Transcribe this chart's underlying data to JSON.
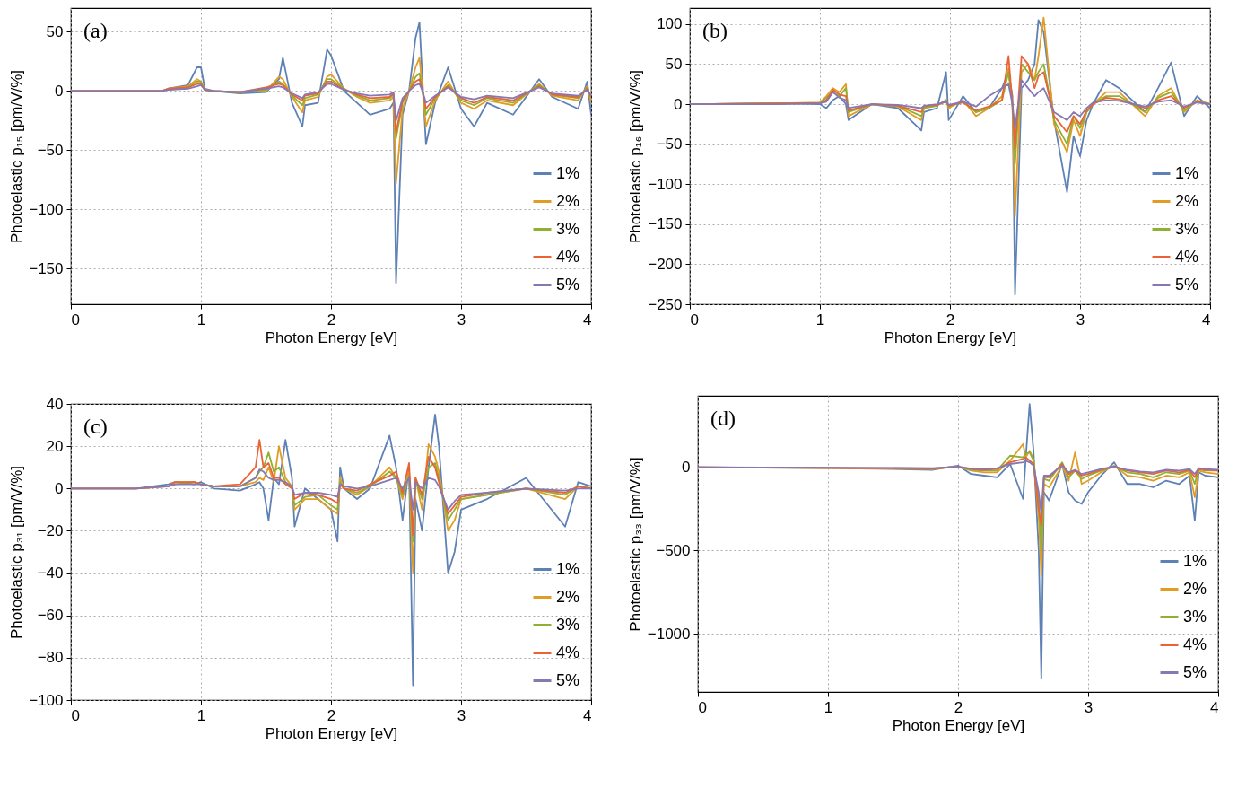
{
  "chart_data": [
    {
      "type": "line",
      "annotations": [
        "(a)"
      ],
      "xlabel": "Photon Energy [eV]",
      "ylabel": "Photoelastic p₁₅ [pm/V/%]",
      "xlim": [
        0,
        4
      ],
      "xticks": [
        0,
        1,
        2,
        3,
        4
      ],
      "ylim": [
        -180,
        70
      ],
      "yticks": [
        -150,
        -100,
        -50,
        0,
        50
      ],
      "grid": true,
      "legend": "bottom right",
      "marker": "none",
      "line_style": "solid",
      "x": [
        0,
        0.7,
        0.75,
        0.9,
        0.97,
        1.0,
        1.03,
        1.1,
        1.3,
        1.5,
        1.6,
        1.63,
        1.7,
        1.78,
        1.8,
        1.9,
        1.97,
        2.0,
        2.1,
        2.2,
        2.3,
        2.45,
        2.48,
        2.5,
        2.55,
        2.6,
        2.65,
        2.68,
        2.7,
        2.73,
        2.8,
        2.9,
        3.0,
        3.1,
        3.2,
        3.4,
        3.6,
        3.7,
        3.9,
        3.97,
        4.0
      ],
      "series": [
        {
          "name": "1%",
          "color": "#5e81b5",
          "values": [
            0,
            0,
            2,
            5,
            20,
            20,
            2,
            0,
            -2,
            -1,
            10,
            28,
            -10,
            -30,
            -12,
            -10,
            35,
            30,
            0,
            -10,
            -20,
            -15,
            -10,
            -162,
            -20,
            0,
            45,
            58,
            15,
            -45,
            -10,
            20,
            -15,
            -30,
            -10,
            -20,
            10,
            -5,
            -15,
            8,
            -20
          ]
        },
        {
          "name": "2%",
          "color": "#e19c24",
          "values": [
            0,
            0,
            2,
            4,
            10,
            8,
            1,
            0,
            -1,
            0,
            12,
            10,
            -5,
            -18,
            -8,
            -5,
            12,
            14,
            2,
            -5,
            -10,
            -8,
            -5,
            -78,
            -15,
            0,
            20,
            28,
            5,
            -30,
            -8,
            8,
            -10,
            -15,
            -8,
            -12,
            6,
            -4,
            -8,
            4,
            -10
          ]
        },
        {
          "name": "3%",
          "color": "#8fb032",
          "values": [
            null,
            null,
            1,
            3,
            8,
            8,
            1,
            0,
            -1,
            1,
            8,
            6,
            -4,
            -12,
            -6,
            -3,
            10,
            10,
            2,
            -4,
            -8,
            -6,
            -3,
            -40,
            -10,
            0,
            12,
            15,
            3,
            -20,
            -6,
            5,
            -8,
            -12,
            -6,
            -10,
            5,
            -3,
            -6,
            3,
            -6
          ]
        },
        {
          "name": "4%",
          "color": "#eb6235",
          "values": [
            0,
            0,
            2,
            3,
            6,
            6,
            1,
            0,
            -1,
            3,
            6,
            5,
            -3,
            -8,
            -4,
            -2,
            8,
            8,
            1,
            -3,
            -6,
            -5,
            -2,
            -35,
            -8,
            0,
            8,
            10,
            2,
            -15,
            -5,
            4,
            -6,
            -10,
            -5,
            -8,
            4,
            -3,
            -5,
            2,
            -5
          ]
        },
        {
          "name": "5%",
          "color": "#8778b3",
          "values": [
            0,
            0,
            1,
            2,
            4,
            5,
            1,
            0,
            -1,
            2,
            4,
            3,
            -2,
            -6,
            -3,
            -1,
            6,
            6,
            1,
            -2,
            -4,
            -3,
            -1,
            -25,
            -6,
            0,
            5,
            6,
            1,
            -10,
            -4,
            3,
            -5,
            -7,
            -4,
            -6,
            3,
            -2,
            -4,
            1,
            -4
          ]
        }
      ]
    },
    {
      "type": "line",
      "annotations": [
        "(b)"
      ],
      "xlabel": "Photon Energy [eV]",
      "ylabel": "Photoelastic p₁₆ [pm/V/%]",
      "xlim": [
        0,
        4
      ],
      "xticks": [
        0,
        1,
        2,
        3,
        4
      ],
      "ylim": [
        -250,
        120
      ],
      "yticks": [
        -250,
        -200,
        -150,
        -100,
        -50,
        0,
        50,
        100
      ],
      "grid": true,
      "legend": "bottom right",
      "marker": "none",
      "line_style": "solid",
      "x": [
        0,
        0.7,
        1.0,
        1.05,
        1.1,
        1.15,
        1.2,
        1.22,
        1.4,
        1.6,
        1.78,
        1.8,
        1.9,
        1.97,
        1.99,
        2.1,
        2.2,
        2.3,
        2.4,
        2.45,
        2.48,
        2.5,
        2.55,
        2.6,
        2.65,
        2.68,
        2.72,
        2.8,
        2.9,
        2.95,
        3.0,
        3.05,
        3.1,
        3.2,
        3.3,
        3.5,
        3.6,
        3.7,
        3.8,
        3.9,
        4.0
      ],
      "series": [
        {
          "name": "1%",
          "color": "#5e81b5",
          "values": [
            0,
            1,
            0,
            -5,
            5,
            10,
            0,
            -20,
            0,
            -5,
            -33,
            -10,
            -5,
            40,
            -20,
            10,
            -10,
            -5,
            20,
            40,
            10,
            -238,
            20,
            30,
            50,
            105,
            90,
            -20,
            -110,
            -40,
            -65,
            -20,
            0,
            30,
            20,
            -10,
            20,
            52,
            -15,
            10,
            -5
          ]
        },
        {
          "name": "2%",
          "color": "#e19c24",
          "values": [
            0,
            1,
            2,
            10,
            20,
            15,
            25,
            -15,
            0,
            -3,
            -20,
            -5,
            -2,
            5,
            -5,
            5,
            -15,
            -5,
            10,
            45,
            0,
            -140,
            40,
            50,
            30,
            60,
            108,
            -25,
            -60,
            -20,
            -40,
            -10,
            0,
            15,
            15,
            -15,
            10,
            20,
            -10,
            5,
            0
          ]
        },
        {
          "name": "3%",
          "color": "#8fb032",
          "values": [
            0,
            1,
            1,
            8,
            15,
            10,
            20,
            -10,
            0,
            -2,
            -15,
            -5,
            -2,
            5,
            -3,
            3,
            -10,
            -5,
            5,
            40,
            0,
            -75,
            50,
            40,
            30,
            40,
            50,
            -20,
            -50,
            -15,
            -30,
            -10,
            0,
            10,
            10,
            -10,
            8,
            15,
            -8,
            4,
            0
          ]
        },
        {
          "name": "4%",
          "color": "#eb6235",
          "values": [
            0,
            1,
            1,
            5,
            18,
            12,
            10,
            -8,
            0,
            -2,
            -10,
            -3,
            -1,
            3,
            -2,
            2,
            -8,
            -3,
            5,
            60,
            0,
            -55,
            60,
            50,
            20,
            35,
            40,
            -15,
            -35,
            -15,
            -25,
            -8,
            0,
            8,
            6,
            -5,
            5,
            10,
            -5,
            3,
            0
          ]
        },
        {
          "name": "5%",
          "color": "#8778b3",
          "values": [
            0,
            0,
            1,
            3,
            15,
            8,
            5,
            -5,
            0,
            -1,
            -5,
            -2,
            0,
            3,
            -1,
            3,
            -3,
            10,
            20,
            25,
            0,
            -30,
            30,
            20,
            10,
            15,
            20,
            -10,
            -20,
            -10,
            -15,
            -5,
            2,
            5,
            4,
            -3,
            3,
            5,
            -3,
            2,
            0
          ]
        }
      ]
    },
    {
      "type": "line",
      "annotations": [
        "(c)"
      ],
      "xlabel": "Photon Energy [eV]",
      "ylabel": "Photoelastic p₃₁ [pm/V/%]",
      "xlim": [
        0,
        4
      ],
      "xticks": [
        0,
        1,
        2,
        3,
        4
      ],
      "ylim": [
        -100,
        40
      ],
      "yticks": [
        -100,
        -80,
        -60,
        -40,
        -20,
        0,
        20,
        40
      ],
      "grid": true,
      "legend": "bottom right",
      "marker": "none",
      "line_style": "solid",
      "x": [
        0,
        0.5,
        0.75,
        0.8,
        0.95,
        1.0,
        1.1,
        1.3,
        1.42,
        1.45,
        1.48,
        1.52,
        1.56,
        1.6,
        1.65,
        1.7,
        1.72,
        1.8,
        1.9,
        2.0,
        2.05,
        2.07,
        2.1,
        2.2,
        2.3,
        2.45,
        2.5,
        2.55,
        2.6,
        2.63,
        2.65,
        2.7,
        2.75,
        2.8,
        2.83,
        2.9,
        2.95,
        3.0,
        3.2,
        3.5,
        3.8,
        3.9,
        4.0
      ],
      "series": [
        {
          "name": "1%",
          "color": "#5e81b5",
          "values": [
            0,
            0,
            2,
            3,
            2,
            3,
            0,
            -1,
            2,
            3,
            0,
            -15,
            5,
            2,
            23,
            5,
            -18,
            0,
            -5,
            -10,
            -25,
            10,
            0,
            -5,
            0,
            25,
            10,
            -15,
            10,
            -93,
            -5,
            -20,
            10,
            35,
            20,
            -40,
            -30,
            -10,
            -5,
            5,
            -18,
            3,
            1
          ]
        },
        {
          "name": "2%",
          "color": "#e19c24",
          "values": [
            0,
            0,
            1,
            3,
            3,
            2,
            1,
            1,
            3,
            5,
            4,
            10,
            3,
            20,
            5,
            1,
            -10,
            -5,
            -5,
            -10,
            -12,
            5,
            0,
            -3,
            1,
            10,
            5,
            -5,
            8,
            -40,
            5,
            -10,
            21,
            15,
            8,
            -20,
            -15,
            -5,
            -3,
            0,
            -5,
            1,
            0
          ]
        },
        {
          "name": "3%",
          "color": "#8fb032",
          "values": [
            null,
            null,
            1,
            2,
            3,
            2,
            1,
            1,
            5,
            8,
            10,
            17,
            8,
            10,
            3,
            0,
            -8,
            -4,
            -3,
            -8,
            -10,
            3,
            0,
            -2,
            1,
            8,
            5,
            -3,
            6,
            -25,
            4,
            -5,
            10,
            12,
            5,
            -15,
            -10,
            -5,
            -3,
            0,
            -3,
            1,
            0
          ]
        },
        {
          "name": "4%",
          "color": "#eb6235",
          "values": [
            0,
            0,
            1,
            3,
            3,
            2,
            1,
            2,
            10,
            23,
            10,
            12,
            5,
            5,
            2,
            0,
            -5,
            -2,
            -3,
            -5,
            -7,
            2,
            0,
            -1,
            2,
            6,
            8,
            -2,
            12,
            -22,
            5,
            -3,
            15,
            10,
            3,
            -12,
            -8,
            -4,
            -2,
            0,
            -2,
            1,
            0
          ]
        },
        {
          "name": "5%",
          "color": "#8778b3",
          "values": [
            0,
            0,
            1,
            2,
            2,
            2,
            1,
            1,
            5,
            9,
            8,
            5,
            4,
            4,
            3,
            1,
            -3,
            -2,
            -2,
            -3,
            -4,
            2,
            1,
            0,
            1,
            4,
            5,
            0,
            5,
            -10,
            3,
            0,
            5,
            4,
            1,
            -10,
            -6,
            -3,
            -2,
            0,
            -1,
            0,
            0
          ]
        }
      ]
    },
    {
      "type": "line",
      "annotations": [
        "(d)"
      ],
      "xlabel": "Photon Energy [eV]",
      "ylabel": "Photoelastic p₃₃ [pm/V/%]",
      "xlim": [
        0,
        4
      ],
      "xticks": [
        0,
        1,
        2,
        3,
        4
      ],
      "ylim": [
        -1350,
        430
      ],
      "yticks": [
        -1000,
        -500,
        0
      ],
      "grid": true,
      "legend": "bottom right",
      "marker": "none",
      "line_style": "solid",
      "x": [
        0,
        1,
        1.5,
        1.8,
        2.0,
        2.1,
        2.2,
        2.3,
        2.4,
        2.5,
        2.52,
        2.55,
        2.58,
        2.62,
        2.64,
        2.66,
        2.7,
        2.8,
        2.85,
        2.9,
        2.95,
        3.0,
        3.1,
        3.2,
        3.3,
        3.4,
        3.5,
        3.6,
        3.7,
        3.78,
        3.82,
        3.85,
        3.9,
        4.0
      ],
      "series": [
        {
          "name": "1%",
          "color": "#5e81b5",
          "values": [
            0,
            -5,
            -10,
            -15,
            10,
            -40,
            -50,
            -60,
            20,
            -190,
            50,
            380,
            100,
            -500,
            -1270,
            -150,
            -200,
            20,
            -150,
            -200,
            -220,
            -150,
            -50,
            30,
            -100,
            -100,
            -120,
            -80,
            -100,
            -50,
            -320,
            -30,
            -50,
            -60
          ]
        },
        {
          "name": "2%",
          "color": "#e19c24",
          "values": [
            0,
            -5,
            -8,
            -10,
            5,
            -20,
            -30,
            -30,
            40,
            140,
            60,
            100,
            50,
            -300,
            -650,
            -100,
            -120,
            10,
            -80,
            90,
            -100,
            -80,
            -30,
            10,
            -50,
            -60,
            -80,
            -50,
            -60,
            -30,
            -180,
            -20,
            -30,
            -40
          ]
        },
        {
          "name": "3%",
          "color": "#8fb032",
          "values": [
            null,
            null,
            -5,
            -8,
            3,
            -15,
            -20,
            -20,
            70,
            60,
            80,
            90,
            40,
            -200,
            -500,
            -70,
            -80,
            30,
            -60,
            -20,
            -70,
            -50,
            -20,
            5,
            -30,
            -40,
            -60,
            -30,
            -40,
            -20,
            -100,
            -10,
            -20,
            -20
          ]
        },
        {
          "name": "4%",
          "color": "#eb6235",
          "values": [
            0,
            -3,
            -5,
            -8,
            5,
            -10,
            -15,
            -10,
            30,
            50,
            60,
            40,
            20,
            -250,
            -350,
            -60,
            -60,
            20,
            -40,
            -20,
            -50,
            -40,
            -15,
            5,
            -20,
            -30,
            -40,
            -20,
            -30,
            -15,
            -60,
            -10,
            -15,
            -20
          ]
        },
        {
          "name": "5%",
          "color": "#8778b3",
          "values": [
            0,
            -2,
            -3,
            -5,
            3,
            -8,
            -10,
            -5,
            20,
            30,
            40,
            30,
            10,
            -150,
            -280,
            -50,
            -50,
            10,
            -30,
            -15,
            -40,
            -30,
            -10,
            5,
            -15,
            -25,
            -30,
            -15,
            -20,
            -10,
            -40,
            -5,
            -10,
            -15
          ]
        }
      ]
    }
  ]
}
